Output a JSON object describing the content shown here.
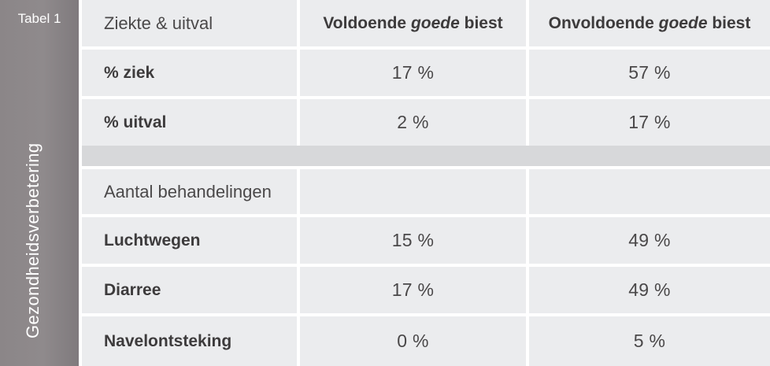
{
  "sidebar": {
    "table_label": "Tabel 1",
    "vertical_title": "Gezondheidsverbetering"
  },
  "header": {
    "col1": "Ziekte & uitval",
    "col2_prefix": "Voldoende ",
    "col2_italic": "goede",
    "col2_suffix": " biest",
    "col3_prefix": "Onvoldoende ",
    "col3_italic": "goede",
    "col3_suffix": " biest"
  },
  "section1": {
    "rows": [
      {
        "label": "% ziek",
        "v1": "17 %",
        "v2": "57 %"
      },
      {
        "label": "% uitval",
        "v1": "2 %",
        "v2": "17 %"
      }
    ]
  },
  "section2": {
    "title": "Aantal behandelingen",
    "rows": [
      {
        "label": "Luchtwegen",
        "v1": "15 %",
        "v2": "49 %"
      },
      {
        "label": "Diarree",
        "v1": "17 %",
        "v2": "49 %"
      },
      {
        "label": "Navelontsteking",
        "v1": "0 %",
        "v2": "5 %"
      }
    ]
  },
  "colors": {
    "sidebar": "#8b8688",
    "cell_bg": "#ebecee",
    "separator": "#d7d8da",
    "text": "#3d3b3c"
  }
}
